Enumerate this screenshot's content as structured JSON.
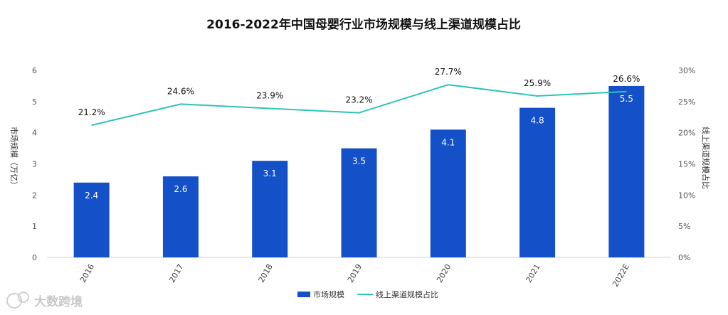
{
  "chart_data": {
    "type": "bar",
    "title": "2016-2022年中国母婴行业市场规模与线上渠道规模占比",
    "categories": [
      "2016",
      "2017",
      "2018",
      "2019",
      "2020",
      "2021",
      "2022E"
    ],
    "ylabel": "市场规模（万亿）",
    "y2label": "线上渠道规模占比",
    "ylim": [
      0,
      6
    ],
    "y2lim": [
      0,
      30
    ],
    "yticks": [
      "0",
      "1",
      "2",
      "3",
      "4",
      "5",
      "6"
    ],
    "y2ticks": [
      "0%",
      "5%",
      "10%",
      "15%",
      "20%",
      "25%",
      "30%"
    ],
    "series": [
      {
        "name": "市场规模",
        "type": "bar",
        "color": "#1450C8",
        "values": [
          2.4,
          2.6,
          3.1,
          3.5,
          4.1,
          4.8,
          5.5
        ],
        "labels": [
          "2.4",
          "2.6",
          "3.1",
          "3.5",
          "4.1",
          "4.8",
          "5.5"
        ]
      },
      {
        "name": "线上渠道规模占比",
        "type": "line",
        "axis": "right",
        "color": "#2EC4B6",
        "values": [
          21.2,
          24.6,
          23.9,
          23.2,
          27.7,
          25.9,
          26.6
        ],
        "labels": [
          "21.2%",
          "24.6%",
          "23.9%",
          "23.2%",
          "27.7%",
          "25.9%",
          "26.6%"
        ]
      }
    ],
    "legend": "bottom-center",
    "grid": false
  },
  "watermark": {
    "text": "大数跨境"
  }
}
